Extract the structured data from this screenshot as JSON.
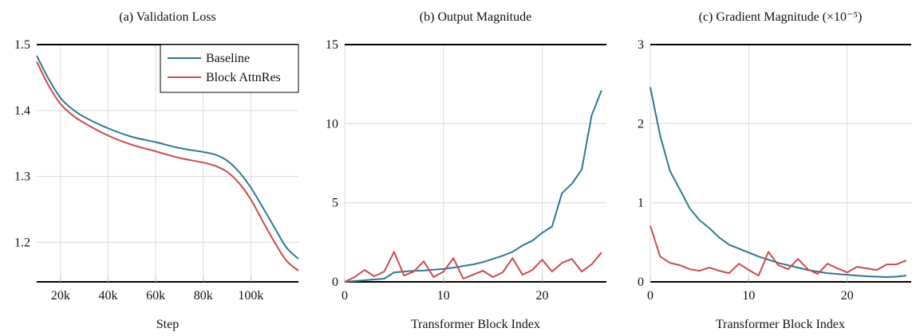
{
  "colors": {
    "baseline": "#2e7891",
    "block_attnres": "#cc4a4a",
    "grid": "#dddddd",
    "axis": "#000000"
  },
  "legend": {
    "items": [
      {
        "label": "Baseline",
        "color": "#2e7891"
      },
      {
        "label": "Block AttnRes",
        "color": "#cc4a4a"
      }
    ]
  },
  "chart_data": [
    {
      "id": "a",
      "type": "line",
      "title": "(a) Validation Loss",
      "xlabel": "Step",
      "ylabel": "",
      "xlim": [
        10000,
        120000
      ],
      "ylim": [
        1.14,
        1.5
      ],
      "xticks": [
        20000,
        40000,
        60000,
        80000,
        100000
      ],
      "xtick_labels": [
        "20k",
        "40k",
        "60k",
        "80k",
        "100k"
      ],
      "yticks": [
        1.2,
        1.3,
        1.4,
        1.5
      ],
      "ytick_labels": [
        "1.2",
        "1.3",
        "1.4",
        "1.5"
      ],
      "grid": true,
      "legend_position": "upper right",
      "smooth": true,
      "x": [
        10000,
        15000,
        20000,
        25000,
        30000,
        40000,
        50000,
        60000,
        70000,
        80000,
        85000,
        90000,
        95000,
        100000,
        105000,
        110000,
        115000,
        120000
      ],
      "series": [
        {
          "name": "Baseline",
          "values": [
            1.483,
            1.448,
            1.419,
            1.402,
            1.39,
            1.373,
            1.36,
            1.352,
            1.343,
            1.337,
            1.333,
            1.324,
            1.307,
            1.283,
            1.253,
            1.222,
            1.192,
            1.175
          ]
        },
        {
          "name": "Block AttnRes",
          "values": [
            1.474,
            1.438,
            1.41,
            1.393,
            1.381,
            1.362,
            1.348,
            1.338,
            1.328,
            1.321,
            1.316,
            1.307,
            1.29,
            1.265,
            1.232,
            1.2,
            1.172,
            1.157
          ]
        }
      ]
    },
    {
      "id": "b",
      "type": "line",
      "title": "(b) Output Magnitude",
      "xlabel": "Transformer Block Index",
      "ylabel": "",
      "xlim": [
        0,
        26.5
      ],
      "ylim": [
        0,
        15
      ],
      "xticks": [
        0,
        10,
        20
      ],
      "xtick_labels": [
        "0",
        "10",
        "20"
      ],
      "yticks": [
        0,
        5,
        10,
        15
      ],
      "ytick_labels": [
        "0",
        "5",
        "10",
        "15"
      ],
      "grid": true,
      "smooth": false,
      "x": [
        0,
        1,
        2,
        3,
        4,
        5,
        6,
        7,
        8,
        9,
        10,
        11,
        12,
        13,
        14,
        15,
        16,
        17,
        18,
        19,
        20,
        21,
        22,
        23,
        24,
        25,
        26
      ],
      "series": [
        {
          "name": "Baseline",
          "values": [
            0.0,
            0.05,
            0.1,
            0.15,
            0.2,
            0.6,
            0.65,
            0.7,
            0.72,
            0.77,
            0.82,
            0.9,
            1.0,
            1.1,
            1.25,
            1.45,
            1.65,
            1.9,
            2.3,
            2.6,
            3.1,
            3.5,
            5.6,
            6.2,
            7.1,
            10.5,
            12.1
          ]
        },
        {
          "name": "Block AttnRes",
          "values": [
            0.0,
            0.3,
            0.75,
            0.35,
            0.65,
            1.9,
            0.4,
            0.65,
            1.3,
            0.3,
            0.65,
            1.5,
            0.2,
            0.45,
            0.7,
            0.3,
            0.6,
            1.5,
            0.45,
            0.75,
            1.4,
            0.65,
            1.2,
            1.45,
            0.65,
            1.1,
            1.85
          ]
        }
      ]
    },
    {
      "id": "c",
      "type": "line",
      "title": "(c) Gradient Magnitude (×10⁻⁵)",
      "xlabel": "Transformer Block Index",
      "ylabel": "",
      "xlim": [
        0,
        26.5
      ],
      "ylim": [
        0,
        3
      ],
      "xticks": [
        0,
        10,
        20
      ],
      "xtick_labels": [
        "0",
        "10",
        "20"
      ],
      "yticks": [
        0,
        1,
        2,
        3
      ],
      "ytick_labels": [
        "0",
        "1",
        "2",
        "3"
      ],
      "grid": true,
      "smooth": false,
      "x": [
        0,
        1,
        2,
        3,
        4,
        5,
        6,
        7,
        8,
        9,
        10,
        11,
        12,
        13,
        14,
        15,
        16,
        17,
        18,
        19,
        20,
        21,
        22,
        23,
        24,
        25,
        26
      ],
      "series": [
        {
          "name": "Baseline",
          "values": [
            2.46,
            1.85,
            1.4,
            1.17,
            0.93,
            0.78,
            0.68,
            0.56,
            0.47,
            0.42,
            0.37,
            0.32,
            0.28,
            0.24,
            0.21,
            0.18,
            0.15,
            0.13,
            0.11,
            0.1,
            0.09,
            0.08,
            0.07,
            0.065,
            0.06,
            0.065,
            0.08
          ]
        },
        {
          "name": "Block AttnRes",
          "values": [
            0.71,
            0.32,
            0.24,
            0.21,
            0.16,
            0.14,
            0.18,
            0.14,
            0.11,
            0.23,
            0.15,
            0.08,
            0.38,
            0.21,
            0.16,
            0.29,
            0.16,
            0.1,
            0.23,
            0.17,
            0.12,
            0.19,
            0.17,
            0.15,
            0.22,
            0.22,
            0.27
          ]
        }
      ]
    }
  ]
}
